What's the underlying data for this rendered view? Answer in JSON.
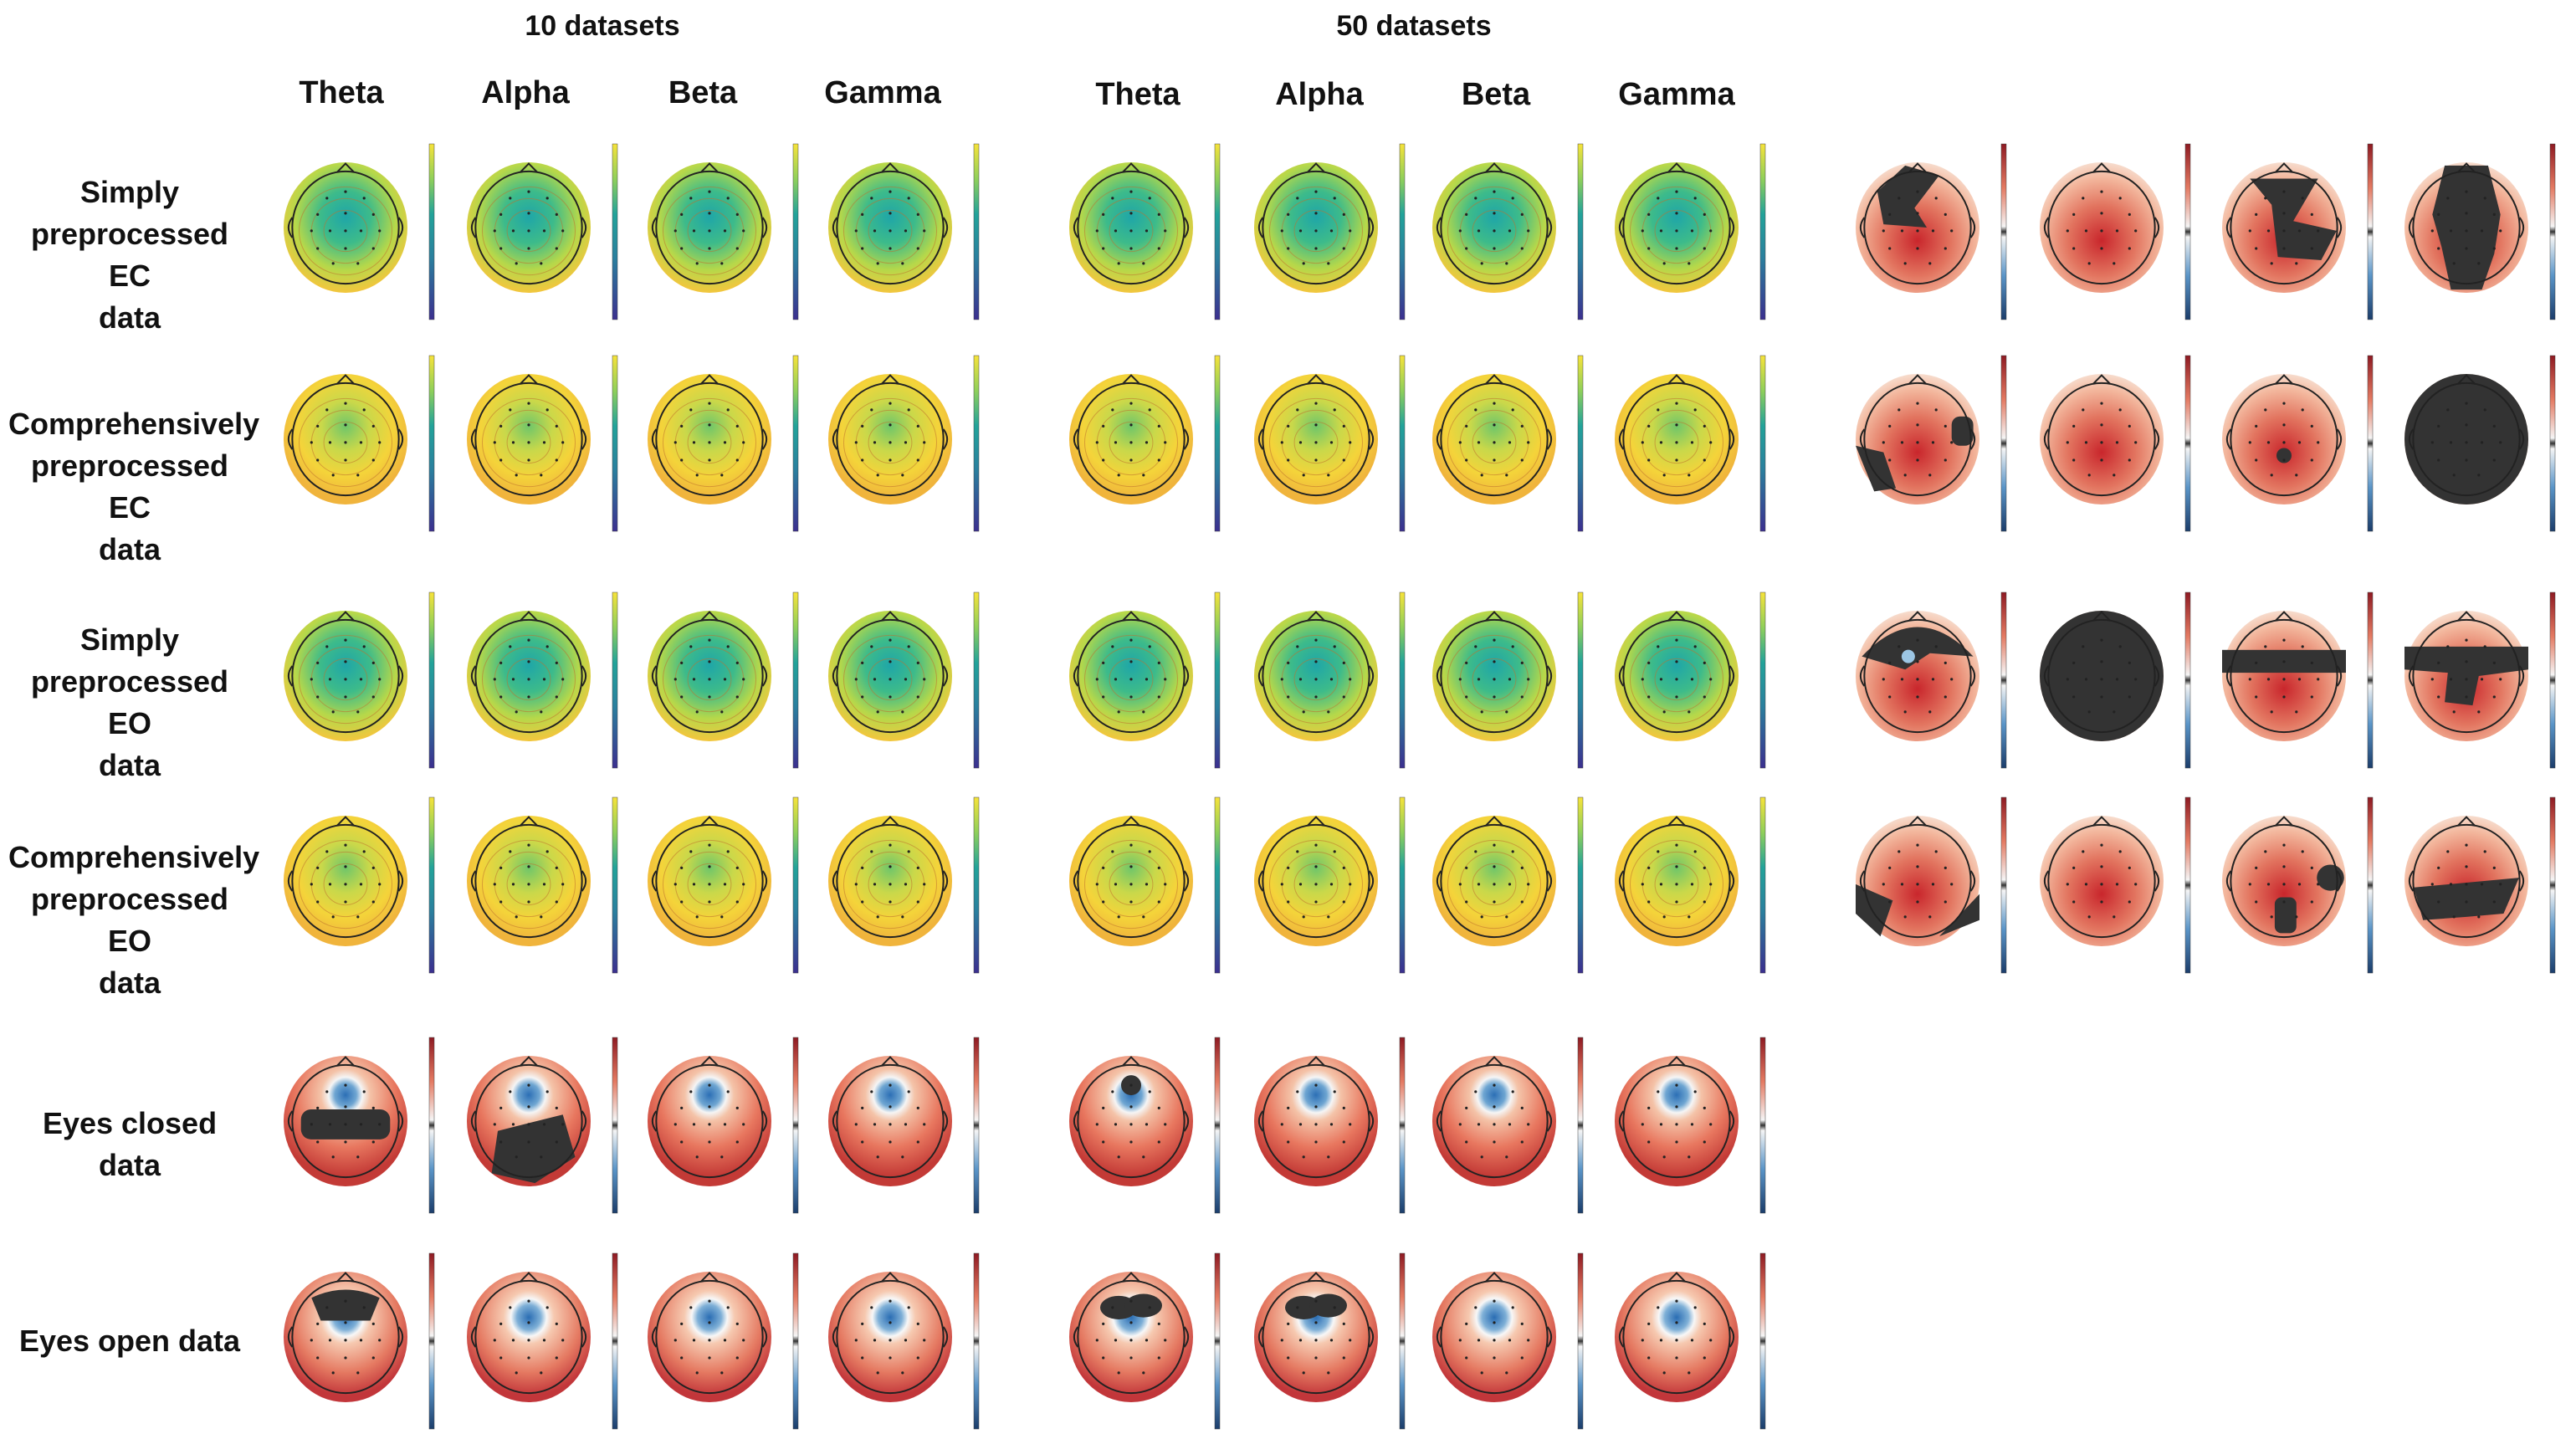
{
  "group_titles": [
    "10 datasets",
    "50 datasets"
  ],
  "bands": [
    "Theta",
    "Alpha",
    "Beta",
    "Gamma"
  ],
  "rows": [
    {
      "label_lines": [
        "Simply",
        "preprocessed EC",
        "data"
      ],
      "kind": "viridis",
      "variant": 0,
      "stat_masks": [
        "wedge-left",
        "none",
        "band-right",
        "hood"
      ]
    },
    {
      "label_lines": [
        "Comprehensively",
        "preprocessed EC",
        "data"
      ],
      "kind": "viridis",
      "variant": 1,
      "stat_masks": [
        "sides",
        "none",
        "dot",
        "full"
      ]
    },
    {
      "label_lines": [
        "Simply",
        "preprocessed EO",
        "data"
      ],
      "kind": "viridis",
      "variant": 0,
      "stat_masks": [
        "top-hole",
        "full",
        "bar",
        "bar-down"
      ]
    },
    {
      "label_lines": [
        "Comprehensively",
        "preprocessed EO",
        "data"
      ],
      "kind": "viridis",
      "variant": 1,
      "stat_masks": [
        "sides-low",
        "none",
        "patch-right",
        "blob-low"
      ]
    },
    {
      "label_lines": [
        "Eyes closed data"
      ],
      "kind": "rdbu",
      "variant": 0,
      "masks10": [
        "frontal-block",
        "diag-block",
        "none",
        "none"
      ],
      "masks50": [
        "front-dot",
        "none",
        "none",
        "none"
      ]
    },
    {
      "label_lines": [
        "Eyes open data"
      ],
      "kind": "rdbu",
      "variant": 1,
      "masks10": [
        "front-cap",
        "none",
        "none",
        "none"
      ],
      "masks50": [
        "front-pair",
        "front-pair",
        "none",
        "none"
      ]
    }
  ],
  "colors": {
    "viridis_low": "#3b2f8f",
    "viridis_mid": "#22a39a",
    "viridis_high": "#f6e33a",
    "rdbu_red": "#b2182b",
    "rdbu_blue": "#2166ac",
    "mask": "#333333"
  }
}
